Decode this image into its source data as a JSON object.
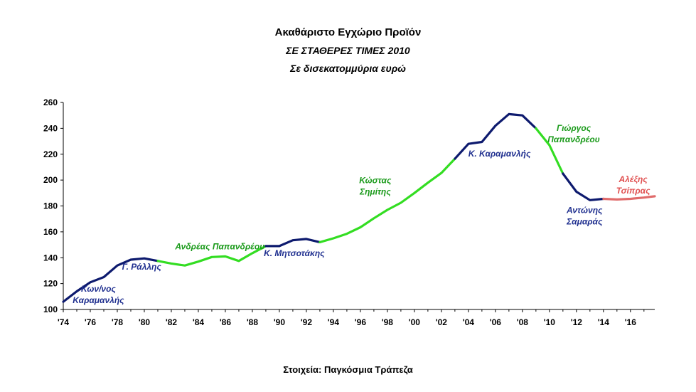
{
  "chart_data": {
    "type": "line",
    "title": "Ακαθάριστο Εγχώριο Προϊόν",
    "subtitle": "ΣΕ ΣΤΑΘΕΡΕΣ ΤΙΜΕΣ 2010",
    "ylabel": "Σε δισεκατομμύρια ευρώ",
    "source": "Στοιχεία: Παγκόσμια Τράπεζα",
    "xlim": [
      1974,
      2017.8
    ],
    "ylim": [
      100,
      260
    ],
    "yticks": [
      100,
      120,
      140,
      160,
      180,
      200,
      220,
      240,
      260
    ],
    "xticks": [
      1974,
      1976,
      1978,
      1980,
      1982,
      1984,
      1986,
      1988,
      1990,
      1992,
      1994,
      1996,
      1998,
      2000,
      2002,
      2004,
      2006,
      2008,
      2010,
      2012,
      2014,
      2016
    ],
    "xtick_labels": [
      "'74",
      "'76",
      "'78",
      "'80",
      "'82",
      "'84",
      "'86",
      "'88",
      "'90",
      "'92",
      "'94",
      "'96",
      "'98",
      "'00",
      "'02",
      "'04",
      "'06",
      "'08",
      "'10",
      "'12",
      "'14",
      "'16"
    ],
    "grid": false,
    "legend": "none",
    "colors": {
      "navy": "#0d1a6e",
      "green": "#33dd22",
      "red": "#e06b6b",
      "label_navy": "#1f2f8f",
      "label_green": "#1a9a1a",
      "label_red": "#e05050"
    },
    "series": [
      {
        "color": "navy",
        "x": [
          1974,
          1975,
          1976,
          1977,
          1978,
          1979,
          1980,
          1981
        ],
        "y": [
          106,
          114,
          121,
          125,
          134,
          138.5,
          139.5,
          137.5
        ]
      },
      {
        "color": "green",
        "x": [
          1981,
          1982,
          1983,
          1984,
          1985,
          1986,
          1987,
          1988,
          1989
        ],
        "y": [
          137.5,
          135.5,
          134,
          137,
          140.5,
          141,
          137.5,
          143.5,
          149
        ]
      },
      {
        "color": "navy",
        "x": [
          1989,
          1990,
          1991,
          1992,
          1993
        ],
        "y": [
          149,
          149,
          153.5,
          154.5,
          152
        ]
      },
      {
        "color": "green",
        "x": [
          1993,
          1994,
          1995,
          1996,
          1997,
          1998,
          1999,
          2000,
          2001,
          2002,
          2003
        ],
        "y": [
          152,
          155,
          158.5,
          163.5,
          170.5,
          177,
          182.5,
          190,
          198,
          205.5,
          216.5
        ]
      },
      {
        "color": "navy",
        "x": [
          2003,
          2004,
          2005,
          2006,
          2007,
          2008,
          2009
        ],
        "y": [
          216.5,
          228,
          229.5,
          242,
          251,
          250,
          240
        ]
      },
      {
        "color": "green",
        "x": [
          2009,
          2010,
          2011
        ],
        "y": [
          240,
          227,
          205
        ]
      },
      {
        "color": "navy",
        "x": [
          2011,
          2012,
          2013,
          2014
        ],
        "y": [
          205,
          191,
          184.5,
          185.5
        ]
      },
      {
        "color": "red",
        "x": [
          2014,
          2015,
          2016,
          2017,
          2017.8
        ],
        "y": [
          185.5,
          185,
          185.5,
          186.5,
          187.5
        ]
      }
    ],
    "annotations": [
      {
        "lines": [
          "Κων/νος",
          "Καραμανλής"
        ],
        "color": "label_navy",
        "x": 1976.6,
        "y": 113.7,
        "anchor": "middle"
      },
      {
        "lines": [
          "Γ. Ράλλης"
        ],
        "color": "label_navy",
        "x": 1979.8,
        "y": 130.8,
        "anchor": "middle"
      },
      {
        "lines": [
          "Ανδρέας Παπανδρέου"
        ],
        "color": "label_green",
        "x": 1985.6,
        "y": 146.5,
        "anchor": "middle"
      },
      {
        "lines": [
          "Κ. Μητσοτάκης"
        ],
        "color": "label_navy",
        "x": 1991.1,
        "y": 141.1,
        "anchor": "middle"
      },
      {
        "lines": [
          "Κώστας",
          "Σημίτης"
        ],
        "color": "label_green",
        "x": 1997.1,
        "y": 197.6,
        "anchor": "middle"
      },
      {
        "lines": [
          "Κ. Καραμανλής"
        ],
        "color": "label_navy",
        "x": 2006.3,
        "y": 218.2,
        "anchor": "middle"
      },
      {
        "lines": [
          "Γιώργος",
          "Παπανδρέου"
        ],
        "color": "label_green",
        "x": 2011.8,
        "y": 238.1,
        "anchor": "middle"
      },
      {
        "lines": [
          "Αλέξης",
          "Τσίπρας"
        ],
        "color": "label_red",
        "x": 2016.2,
        "y": 198.5,
        "anchor": "middle"
      },
      {
        "lines": [
          "Αντώνης",
          "Σαμαράς"
        ],
        "color": "label_navy",
        "x": 2012.6,
        "y": 174.6,
        "anchor": "middle"
      }
    ]
  }
}
